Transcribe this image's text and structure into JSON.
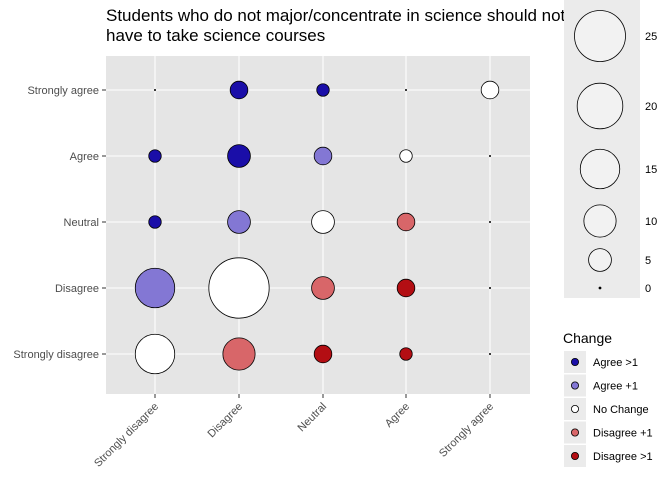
{
  "chart_data": {
    "type": "scatter",
    "title": "Students who do not major/concentrate in science should not\nhave to take science courses",
    "x_categories": [
      "Strongly disagree",
      "Disagree",
      "Neutral",
      "Agree",
      "Strongly agree"
    ],
    "y_categories": [
      "Strongly disagree",
      "Disagree",
      "Neutral",
      "Agree",
      "Strongly agree"
    ],
    "points": [
      {
        "x": "Strongly disagree",
        "y": "Strongly agree",
        "size": 0,
        "change": "Agree >1"
      },
      {
        "x": "Disagree",
        "y": "Strongly agree",
        "size": 3,
        "change": "Agree >1"
      },
      {
        "x": "Neutral",
        "y": "Strongly agree",
        "size": 1.5,
        "change": "Agree >1"
      },
      {
        "x": "Agree",
        "y": "Strongly agree",
        "size": 0,
        "change": "Agree >1"
      },
      {
        "x": "Strongly agree",
        "y": "Strongly agree",
        "size": 3,
        "change": "No Change"
      },
      {
        "x": "Strongly disagree",
        "y": "Agree",
        "size": 1.5,
        "change": "Agree >1"
      },
      {
        "x": "Disagree",
        "y": "Agree",
        "size": 5,
        "change": "Agree >1"
      },
      {
        "x": "Neutral",
        "y": "Agree",
        "size": 3,
        "change": "Agree +1"
      },
      {
        "x": "Agree",
        "y": "Agree",
        "size": 1.5,
        "change": "No Change"
      },
      {
        "x": "Strongly agree",
        "y": "Agree",
        "size": 0,
        "change": "Agree >1"
      },
      {
        "x": "Strongly disagree",
        "y": "Neutral",
        "size": 1.5,
        "change": "Agree >1"
      },
      {
        "x": "Disagree",
        "y": "Neutral",
        "size": 5,
        "change": "Agree +1"
      },
      {
        "x": "Neutral",
        "y": "Neutral",
        "size": 5,
        "change": "No Change"
      },
      {
        "x": "Agree",
        "y": "Neutral",
        "size": 3,
        "change": "Disagree +1"
      },
      {
        "x": "Strongly agree",
        "y": "Neutral",
        "size": 0,
        "change": "Agree >1"
      },
      {
        "x": "Strongly disagree",
        "y": "Disagree",
        "size": 15,
        "change": "Agree +1"
      },
      {
        "x": "Disagree",
        "y": "Disagree",
        "size": 35,
        "change": "No Change"
      },
      {
        "x": "Neutral",
        "y": "Disagree",
        "size": 5,
        "change": "Disagree +1"
      },
      {
        "x": "Agree",
        "y": "Disagree",
        "size": 3,
        "change": "Disagree >1"
      },
      {
        "x": "Strongly agree",
        "y": "Disagree",
        "size": 0,
        "change": "Agree >1"
      },
      {
        "x": "Strongly disagree",
        "y": "Strongly disagree",
        "size": 15,
        "change": "No Change"
      },
      {
        "x": "Disagree",
        "y": "Strongly disagree",
        "size": 10,
        "change": "Disagree +1"
      },
      {
        "x": "Neutral",
        "y": "Strongly disagree",
        "size": 3,
        "change": "Disagree >1"
      },
      {
        "x": "Agree",
        "y": "Strongly disagree",
        "size": 1.5,
        "change": "Disagree >1"
      },
      {
        "x": "Strongly agree",
        "y": "Strongly disagree",
        "size": 0,
        "change": "Agree >1"
      }
    ],
    "size_legend": {
      "values": [
        25,
        20,
        15,
        10,
        5,
        0
      ],
      "labels": [
        "25",
        "20",
        "15",
        "10",
        "5",
        "0"
      ]
    },
    "color_legend": {
      "title": "Change",
      "items": [
        {
          "label": "Agree >1",
          "color": "#1a0ea8"
        },
        {
          "label": "Agree +1",
          "color": "#8377d4"
        },
        {
          "label": "No Change",
          "color": "#ffffff"
        },
        {
          "label": "Disagree +1",
          "color": "#d86669"
        },
        {
          "label": "Disagree >1",
          "color": "#b30e13"
        }
      ]
    },
    "panel_background": "#e5e5e5",
    "grid": true
  }
}
